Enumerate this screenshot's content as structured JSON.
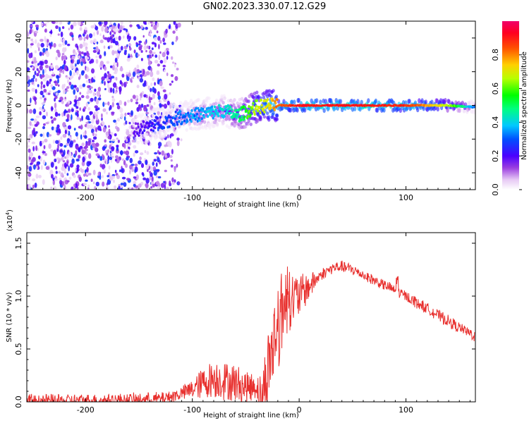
{
  "title": "GN02.2023.330.07.12.G29",
  "chart_data": [
    {
      "type": "heatmap",
      "name": "spectrogram",
      "xlabel": "Height of straight line (km)",
      "ylabel": "Frequency (Hz)",
      "xlim": [
        -255,
        165
      ],
      "ylim": [
        -50,
        50
      ],
      "xticks": [
        "-200",
        "-100",
        "0",
        "100"
      ],
      "xtick_values": [
        -200,
        -100,
        0,
        100
      ],
      "yticks": [
        "-40",
        "-20",
        "0",
        "20",
        "40"
      ],
      "ytick_values": [
        -40,
        -20,
        0,
        20,
        40
      ],
      "colorbar": {
        "label": "Normalized spectral amplitude",
        "range": [
          0,
          1
        ],
        "ticks": [
          "0.0",
          "0.2",
          "0.4",
          "0.6",
          "0.8"
        ],
        "tick_values": [
          0.0,
          0.2,
          0.4,
          0.6,
          0.8
        ]
      },
      "features": {
        "noise_region_x": [
          -255,
          -125
        ],
        "noise_amplitude": 0.25,
        "signal_trace": {
          "x": [
            -155,
            -130,
            -110,
            -90,
            -70,
            -58,
            -50,
            -40,
            -30,
            -20,
            -10,
            0,
            20,
            60,
            100,
            140,
            165
          ],
          "freq": [
            -15,
            -10,
            -7,
            -5,
            -3,
            -6,
            -4,
            -1,
            0,
            0,
            0,
            0,
            0,
            0,
            0,
            0,
            -1
          ],
          "amplitude": [
            0.2,
            0.3,
            0.35,
            0.4,
            0.45,
            0.5,
            0.6,
            0.7,
            0.75,
            0.85,
            0.9,
            0.95,
            0.95,
            0.95,
            0.92,
            0.7,
            0.35
          ]
        }
      }
    },
    {
      "type": "line",
      "name": "snr",
      "xlabel": "Height of straight line (km)",
      "ylabel": "SNR (10 * v/v)",
      "yscale_label": "(x10",
      "yscale_exp": "4",
      "yscale_close": ")",
      "xlim": [
        -255,
        165
      ],
      "ylim": [
        0,
        1.6
      ],
      "xticks": [
        "-200",
        "-100",
        "0",
        "100"
      ],
      "xtick_values": [
        -200,
        -100,
        0,
        100
      ],
      "yticks": [
        "0.0",
        "0.5",
        "1.0",
        "1.5"
      ],
      "ytick_values": [
        0.0,
        0.5,
        1.0,
        1.5
      ],
      "color": "#e8302e",
      "series": [
        {
          "name": "SNR",
          "x": [
            -255,
            -200,
            -150,
            -130,
            -120,
            -110,
            -100,
            -90,
            -80,
            -70,
            -60,
            -50,
            -40,
            -35,
            -30,
            -25,
            -20,
            -15,
            -10,
            -5,
            0,
            10,
            20,
            30,
            40,
            50,
            60,
            70,
            80,
            90,
            100,
            110,
            120,
            130,
            140,
            150,
            165
          ],
          "y": [
            0.01,
            0.01,
            0.02,
            0.03,
            0.05,
            0.08,
            0.12,
            0.18,
            0.22,
            0.2,
            0.18,
            0.14,
            0.15,
            0.02,
            0.3,
            0.5,
            0.75,
            0.9,
            0.95,
            0.98,
            1.0,
            1.1,
            1.2,
            1.26,
            1.28,
            1.25,
            1.2,
            1.15,
            1.1,
            1.05,
            1.0,
            0.94,
            0.88,
            0.82,
            0.76,
            0.7,
            0.62
          ]
        }
      ],
      "noise": {
        "x": [
          -110,
          -80,
          -60,
          -40,
          -30,
          -20,
          -10,
          0,
          20
        ],
        "amplitude": [
          0.06,
          0.18,
          0.18,
          0.12,
          0.35,
          0.45,
          0.3,
          0.2,
          0.05
        ]
      }
    }
  ]
}
